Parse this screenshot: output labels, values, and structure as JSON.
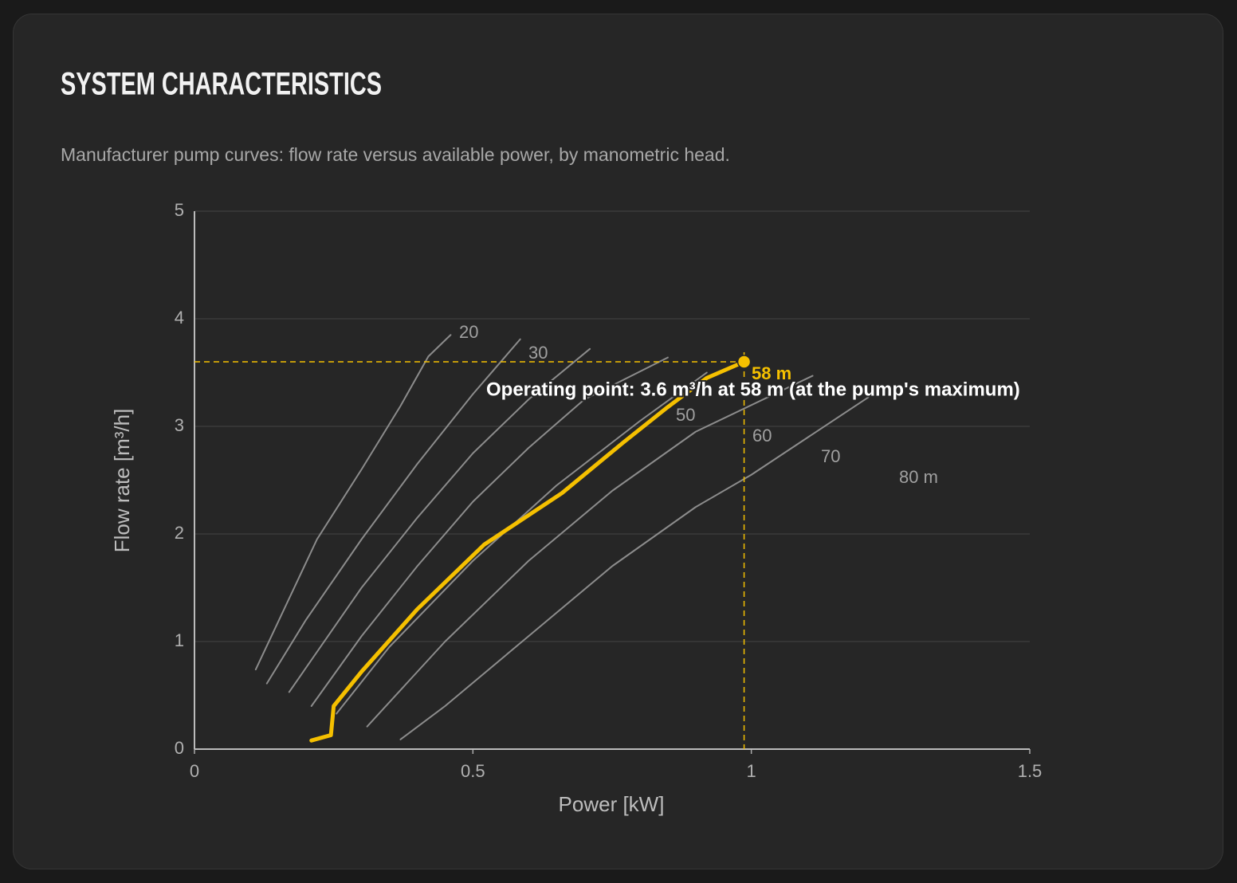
{
  "chart_data": {
    "type": "line",
    "title": "SYSTEM CHARACTERISTICS",
    "subtitle": "Manufacturer pump curves: flow rate versus available power, by manometric head.",
    "x_label": "Power [kW]",
    "y_label": "Flow rate [m³/h]",
    "xlim": [
      0,
      1.5
    ],
    "xticks": [
      0,
      0.5,
      1,
      1.5
    ],
    "ylim": [
      0,
      5
    ],
    "yticks": [
      0,
      1,
      2,
      3,
      4,
      5
    ],
    "grid": true,
    "series": [
      {
        "name": "20",
        "color": "#8c8c8c",
        "x": [
          0.11,
          0.22,
          0.3,
          0.37,
          0.42,
          0.46
        ],
        "values": [
          0.74,
          1.95,
          2.6,
          3.19,
          3.65,
          3.85
        ]
      },
      {
        "name": "30",
        "color": "#8c8c8c",
        "x": [
          0.13,
          0.2,
          0.3,
          0.4,
          0.5,
          0.585
        ],
        "values": [
          0.61,
          1.2,
          1.95,
          2.65,
          3.3,
          3.81
        ]
      },
      {
        "color": "#8c8c8c",
        "x": [
          0.17,
          0.3,
          0.4,
          0.5,
          0.6,
          0.71
        ],
        "values": [
          0.53,
          1.5,
          2.15,
          2.75,
          3.25,
          3.72
        ]
      },
      {
        "name": "50",
        "color": "#8c8c8c",
        "x": [
          0.21,
          0.3,
          0.4,
          0.5,
          0.6,
          0.7,
          0.85
        ],
        "values": [
          0.4,
          1.05,
          1.7,
          2.3,
          2.8,
          3.25,
          3.64
        ]
      },
      {
        "name": "60",
        "color": "#8c8c8c",
        "x": [
          0.255,
          0.35,
          0.5,
          0.65,
          0.8,
          0.92
        ],
        "values": [
          0.33,
          0.95,
          1.75,
          2.45,
          3.05,
          3.5
        ]
      },
      {
        "name": "70",
        "color": "#8c8c8c",
        "x": [
          0.31,
          0.45,
          0.6,
          0.75,
          0.9,
          1.11
        ],
        "values": [
          0.21,
          1.0,
          1.75,
          2.4,
          2.95,
          3.47
        ]
      },
      {
        "name": "80 m",
        "color": "#8c8c8c",
        "x": [
          0.37,
          0.45,
          0.6,
          0.75,
          0.9,
          1.0,
          1.21
        ],
        "values": [
          0.09,
          0.4,
          1.05,
          1.7,
          2.25,
          2.55,
          3.27
        ]
      },
      {
        "name": "58 m",
        "color": "#f5c000",
        "highlight": true,
        "x": [
          0.21,
          0.245,
          0.25,
          0.3,
          0.4,
          0.52,
          0.66,
          0.77,
          0.85,
          0.92,
          0.987
        ],
        "values": [
          0.08,
          0.13,
          0.4,
          0.72,
          1.3,
          1.9,
          2.38,
          2.85,
          3.18,
          3.45,
          3.6
        ]
      }
    ],
    "operating_point": {
      "x": 0.987,
      "y": 3.6,
      "color": "#f5c000",
      "label": "Operating point: 3.6 m³/h at 58 m (at the pump's maximum)"
    }
  }
}
